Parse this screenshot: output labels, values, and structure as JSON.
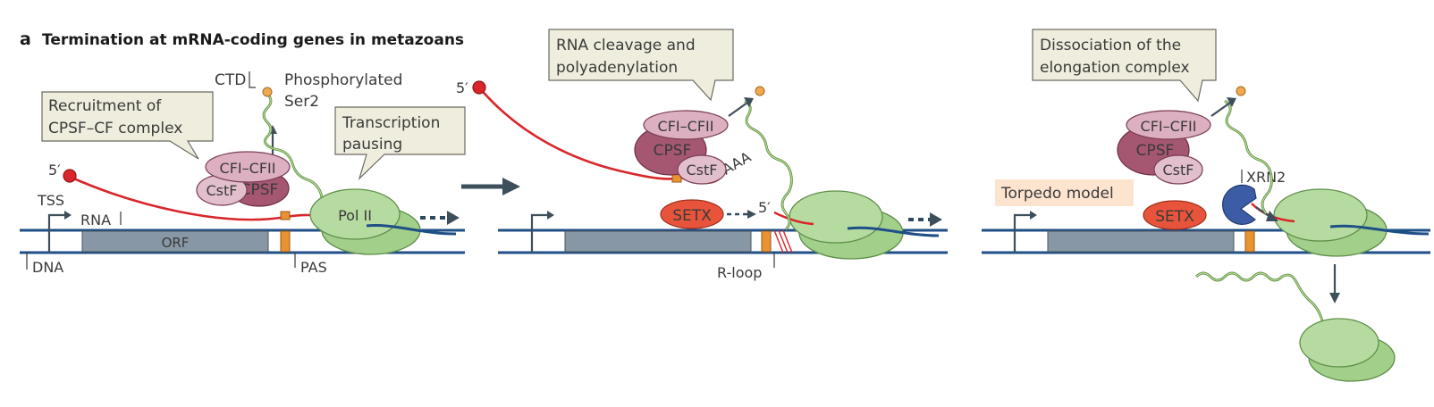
{
  "panel": {
    "letter": "a",
    "title": "Termination at mRNA-coding genes in metazoans"
  },
  "callouts": {
    "recruitment_line1": "Recruitment of",
    "recruitment_line2": "CPSF–CF complex",
    "pausing_line1": "Transcription",
    "pausing_line2": "pausing",
    "cleavage_line1": "RNA cleavage and",
    "cleavage_line2": "polyadenylation",
    "dissociation_line1": "Dissociation of the",
    "dissociation_line2": "elongation complex",
    "torpedo": "Torpedo model"
  },
  "labels": {
    "five_prime": "5′",
    "tss": "TSS",
    "rna": "RNA",
    "dna": "DNA",
    "orf": "ORF",
    "pas": "PAS",
    "ctd": "CTD",
    "phospho_line1": "Phosphorylated",
    "phospho_line2": "Ser2",
    "pol2": "Pol II",
    "cfi_cfii": "CFI–CFII",
    "cstf": "CstF",
    "cpsf": "CPSF",
    "aaa": "AAA",
    "setx": "SETX",
    "rloop": "R-loop",
    "xrn2": "XRN2"
  },
  "colors": {
    "dna": "#1f4f87",
    "rna": "#d9262a",
    "pol2": "#b6dba0",
    "cpsf": "#a55771",
    "setx": "#e8543b",
    "xrn2": "#3c5ca6",
    "pas": "#e89232",
    "callout": "#efeede",
    "torpedo_callout": "#fde4cf"
  }
}
